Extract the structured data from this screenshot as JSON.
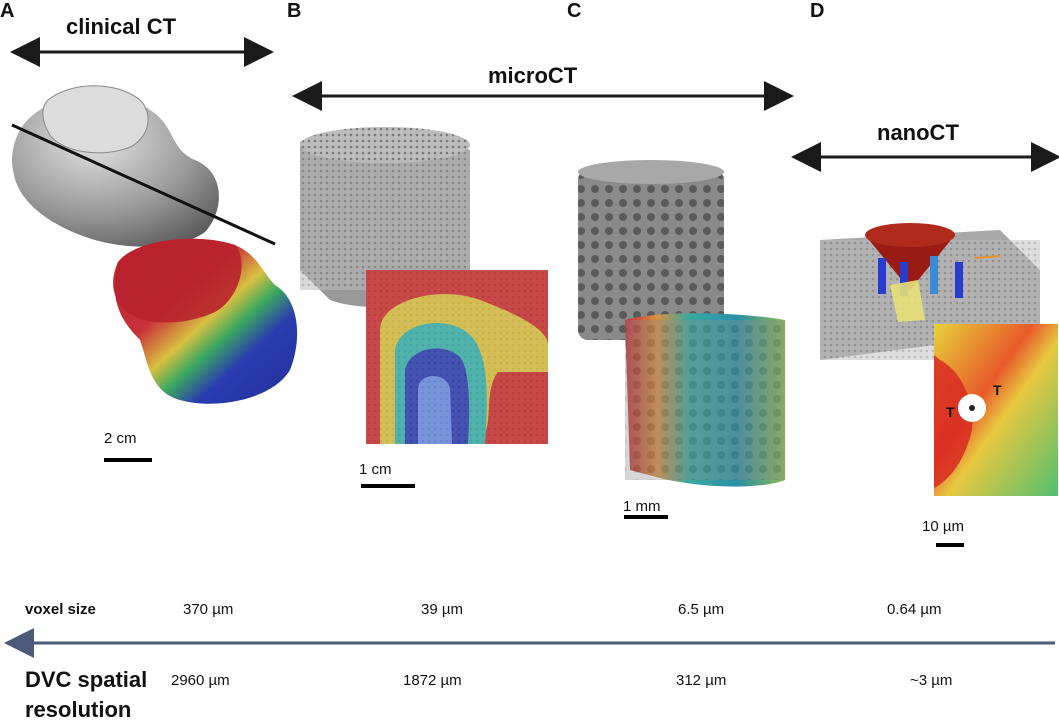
{
  "panels": [
    {
      "letter": "A",
      "modality": "clinical CT",
      "scalebar": "2 cm"
    },
    {
      "letter": "B",
      "modality": "microCT",
      "scalebar": "1 cm"
    },
    {
      "letter": "C",
      "modality": "",
      "scalebar": "1 mm"
    },
    {
      "letter": "D",
      "modality": "nanoCT",
      "scalebar": "10 µm"
    }
  ],
  "nano_markers": {
    "t1": "T",
    "t2": "T"
  },
  "table": {
    "voxel_label": "voxel size",
    "voxel_values": [
      "370 µm",
      "39 µm",
      "6.5 µm",
      "0.64 µm"
    ],
    "dvc_label_line1": "DVC spatial",
    "dvc_label_line2": "resolution",
    "dvc_values": [
      "2960 µm",
      "1872 µm",
      "312 µm",
      "~3 µm"
    ]
  },
  "colors": {
    "arrow": "#1a1a1a",
    "resolution_arrow": "#4a5a78",
    "strain_red": "#c0282a",
    "strain_yellow": "#e8d23a",
    "strain_blue": "#2a3cb0",
    "bone_grey": "#9a9a9a"
  }
}
